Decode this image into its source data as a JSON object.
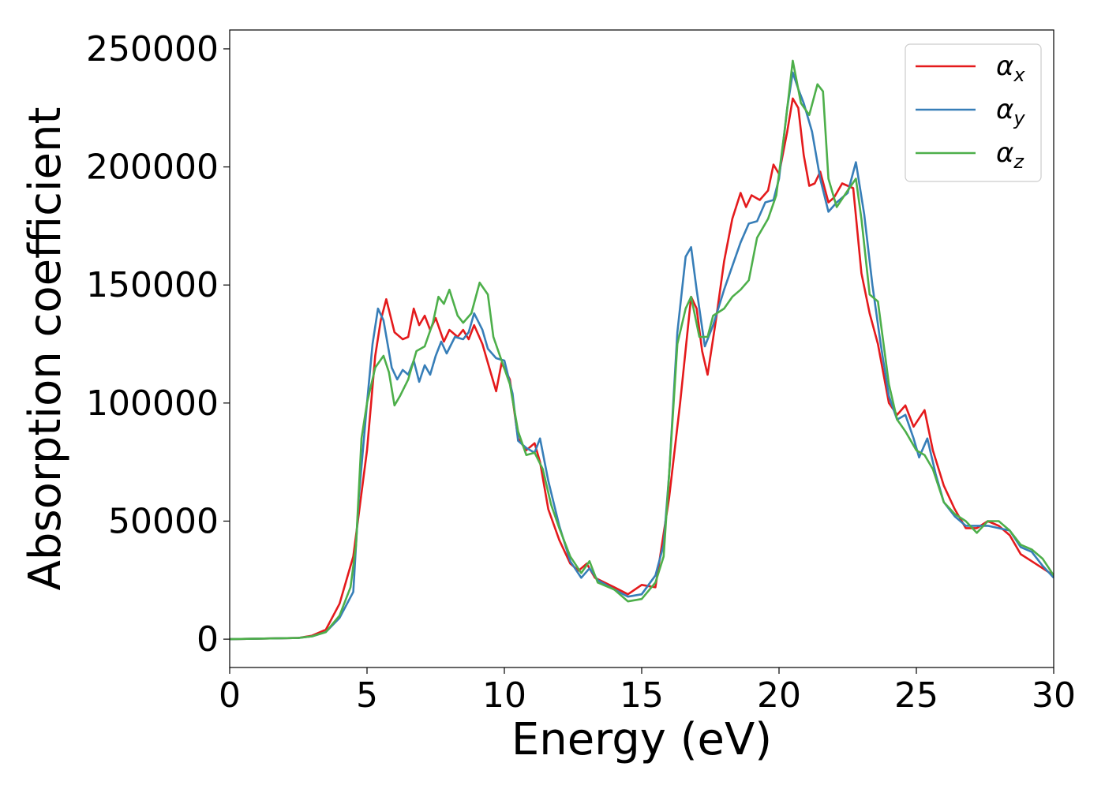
{
  "chart_data": {
    "type": "line",
    "title": "",
    "xlabel": "Energy (eV)",
    "ylabel": "Absorption coefficient",
    "xlim": [
      0,
      30
    ],
    "ylim": [
      -12000,
      258000
    ],
    "xticks": [
      0,
      5,
      10,
      15,
      20,
      25,
      30
    ],
    "xtick_labels": [
      "0",
      "5",
      "10",
      "15",
      "20",
      "25",
      "30"
    ],
    "yticks": [
      0,
      50000,
      100000,
      150000,
      200000,
      250000
    ],
    "ytick_labels": [
      "0",
      "50000",
      "100000",
      "150000",
      "200000",
      "250000"
    ],
    "grid": false,
    "legend_position": "top-right",
    "series": [
      {
        "name": "α_x",
        "symbol": "α",
        "subscript": "x",
        "color": "#e41a1c",
        "points": [
          [
            0,
            0
          ],
          [
            2.5,
            500
          ],
          [
            3,
            1500
          ],
          [
            3.5,
            4000
          ],
          [
            4,
            15000
          ],
          [
            4.5,
            35000
          ],
          [
            5,
            80000
          ],
          [
            5.3,
            120000
          ],
          [
            5.5,
            135000
          ],
          [
            5.7,
            144000
          ],
          [
            6,
            130000
          ],
          [
            6.3,
            127000
          ],
          [
            6.5,
            128000
          ],
          [
            6.7,
            140000
          ],
          [
            6.9,
            133000
          ],
          [
            7.1,
            137000
          ],
          [
            7.3,
            131000
          ],
          [
            7.5,
            136000
          ],
          [
            7.8,
            126000
          ],
          [
            8,
            131000
          ],
          [
            8.3,
            128000
          ],
          [
            8.5,
            131000
          ],
          [
            8.7,
            127000
          ],
          [
            8.9,
            133000
          ],
          [
            9.2,
            125000
          ],
          [
            9.5,
            113000
          ],
          [
            9.7,
            105000
          ],
          [
            9.9,
            117000
          ],
          [
            10.2,
            110000
          ],
          [
            10.5,
            85000
          ],
          [
            10.8,
            80000
          ],
          [
            11.1,
            83000
          ],
          [
            11.3,
            75000
          ],
          [
            11.6,
            55000
          ],
          [
            12,
            42000
          ],
          [
            12.4,
            32000
          ],
          [
            12.7,
            29000
          ],
          [
            13,
            32000
          ],
          [
            13.3,
            26000
          ],
          [
            14,
            22000
          ],
          [
            14.5,
            19000
          ],
          [
            15,
            23000
          ],
          [
            15.5,
            22000
          ],
          [
            16,
            60000
          ],
          [
            16.4,
            100000
          ],
          [
            16.8,
            145000
          ],
          [
            17,
            140000
          ],
          [
            17.2,
            122000
          ],
          [
            17.4,
            112000
          ],
          [
            17.7,
            135000
          ],
          [
            18,
            160000
          ],
          [
            18.3,
            178000
          ],
          [
            18.6,
            189000
          ],
          [
            18.8,
            183000
          ],
          [
            19,
            188000
          ],
          [
            19.3,
            186000
          ],
          [
            19.6,
            190000
          ],
          [
            19.8,
            201000
          ],
          [
            20,
            197000
          ],
          [
            20.3,
            215000
          ],
          [
            20.5,
            229000
          ],
          [
            20.7,
            225000
          ],
          [
            20.9,
            205000
          ],
          [
            21.1,
            192000
          ],
          [
            21.3,
            193000
          ],
          [
            21.5,
            198000
          ],
          [
            21.8,
            185000
          ],
          [
            22,
            187000
          ],
          [
            22.3,
            193000
          ],
          [
            22.7,
            191000
          ],
          [
            23,
            155000
          ],
          [
            23.3,
            138000
          ],
          [
            23.6,
            125000
          ],
          [
            24,
            100000
          ],
          [
            24.3,
            95000
          ],
          [
            24.6,
            99000
          ],
          [
            24.9,
            90000
          ],
          [
            25.3,
            97000
          ],
          [
            25.6,
            80000
          ],
          [
            26,
            65000
          ],
          [
            26.4,
            55000
          ],
          [
            26.8,
            47000
          ],
          [
            27.2,
            47000
          ],
          [
            27.6,
            50000
          ],
          [
            28,
            48000
          ],
          [
            28.4,
            44000
          ],
          [
            28.8,
            36000
          ],
          [
            29.2,
            33000
          ],
          [
            29.6,
            30000
          ],
          [
            30,
            27000
          ]
        ]
      },
      {
        "name": "α_y",
        "symbol": "α",
        "subscript": "y",
        "color": "#377eb8",
        "points": [
          [
            0,
            0
          ],
          [
            2.5,
            500
          ],
          [
            3,
            1200
          ],
          [
            3.5,
            3000
          ],
          [
            4,
            9000
          ],
          [
            4.5,
            20000
          ],
          [
            4.7,
            60000
          ],
          [
            5,
            100000
          ],
          [
            5.2,
            125000
          ],
          [
            5.4,
            140000
          ],
          [
            5.6,
            135000
          ],
          [
            5.9,
            115000
          ],
          [
            6.1,
            110000
          ],
          [
            6.3,
            114000
          ],
          [
            6.5,
            112000
          ],
          [
            6.7,
            118000
          ],
          [
            6.9,
            109000
          ],
          [
            7.1,
            116000
          ],
          [
            7.3,
            112000
          ],
          [
            7.5,
            120000
          ],
          [
            7.7,
            126000
          ],
          [
            7.9,
            121000
          ],
          [
            8.2,
            128000
          ],
          [
            8.5,
            127000
          ],
          [
            8.7,
            130000
          ],
          [
            8.9,
            138000
          ],
          [
            9.2,
            131000
          ],
          [
            9.4,
            123000
          ],
          [
            9.7,
            119000
          ],
          [
            10,
            118000
          ],
          [
            10.3,
            104000
          ],
          [
            10.5,
            84000
          ],
          [
            10.8,
            81000
          ],
          [
            11.1,
            79000
          ],
          [
            11.3,
            85000
          ],
          [
            11.6,
            67000
          ],
          [
            12,
            48000
          ],
          [
            12.4,
            33000
          ],
          [
            12.8,
            26000
          ],
          [
            13.1,
            30000
          ],
          [
            13.4,
            25000
          ],
          [
            14,
            21000
          ],
          [
            14.5,
            18000
          ],
          [
            15,
            19000
          ],
          [
            15.5,
            27000
          ],
          [
            15.8,
            40000
          ],
          [
            16,
            70000
          ],
          [
            16.3,
            130000
          ],
          [
            16.6,
            162000
          ],
          [
            16.8,
            166000
          ],
          [
            17,
            148000
          ],
          [
            17.3,
            124000
          ],
          [
            17.6,
            133000
          ],
          [
            18,
            148000
          ],
          [
            18.3,
            158000
          ],
          [
            18.6,
            168000
          ],
          [
            18.9,
            176000
          ],
          [
            19.2,
            177000
          ],
          [
            19.5,
            185000
          ],
          [
            19.8,
            186000
          ],
          [
            20,
            195000
          ],
          [
            20.3,
            225000
          ],
          [
            20.5,
            240000
          ],
          [
            20.7,
            233000
          ],
          [
            20.9,
            227000
          ],
          [
            21.2,
            215000
          ],
          [
            21.5,
            195000
          ],
          [
            21.8,
            181000
          ],
          [
            22.1,
            185000
          ],
          [
            22.5,
            189000
          ],
          [
            22.8,
            202000
          ],
          [
            23.1,
            180000
          ],
          [
            23.4,
            150000
          ],
          [
            23.7,
            125000
          ],
          [
            24,
            103000
          ],
          [
            24.3,
            93000
          ],
          [
            24.6,
            95000
          ],
          [
            24.9,
            85000
          ],
          [
            25.1,
            77000
          ],
          [
            25.4,
            85000
          ],
          [
            25.7,
            70000
          ],
          [
            26,
            58000
          ],
          [
            26.4,
            52000
          ],
          [
            26.8,
            48000
          ],
          [
            27.2,
            48000
          ],
          [
            27.6,
            48000
          ],
          [
            28,
            47000
          ],
          [
            28.4,
            46000
          ],
          [
            28.8,
            39000
          ],
          [
            29.2,
            37000
          ],
          [
            29.6,
            31000
          ],
          [
            30,
            26000
          ]
        ]
      },
      {
        "name": "α_z",
        "symbol": "α",
        "subscript": "z",
        "color": "#4daf4a",
        "points": [
          [
            0,
            0
          ],
          [
            2.5,
            500
          ],
          [
            3,
            1200
          ],
          [
            3.5,
            3000
          ],
          [
            4,
            10000
          ],
          [
            4.4,
            22000
          ],
          [
            4.6,
            40000
          ],
          [
            4.8,
            85000
          ],
          [
            5,
            100000
          ],
          [
            5.3,
            115000
          ],
          [
            5.6,
            120000
          ],
          [
            5.8,
            113000
          ],
          [
            6,
            99000
          ],
          [
            6.2,
            103000
          ],
          [
            6.5,
            110000
          ],
          [
            6.8,
            122000
          ],
          [
            7.1,
            124000
          ],
          [
            7.4,
            134000
          ],
          [
            7.6,
            145000
          ],
          [
            7.8,
            142000
          ],
          [
            8,
            148000
          ],
          [
            8.3,
            137000
          ],
          [
            8.5,
            134000
          ],
          [
            8.8,
            138000
          ],
          [
            9.1,
            151000
          ],
          [
            9.4,
            146000
          ],
          [
            9.6,
            128000
          ],
          [
            9.9,
            118000
          ],
          [
            10.2,
            108000
          ],
          [
            10.5,
            88000
          ],
          [
            10.8,
            78000
          ],
          [
            11.1,
            79000
          ],
          [
            11.4,
            72000
          ],
          [
            11.7,
            57000
          ],
          [
            12,
            47000
          ],
          [
            12.4,
            35000
          ],
          [
            12.8,
            28000
          ],
          [
            13.1,
            33000
          ],
          [
            13.4,
            24000
          ],
          [
            14,
            21000
          ],
          [
            14.5,
            16000
          ],
          [
            15,
            17000
          ],
          [
            15.5,
            24000
          ],
          [
            15.8,
            35000
          ],
          [
            16,
            70000
          ],
          [
            16.3,
            125000
          ],
          [
            16.6,
            140000
          ],
          [
            16.8,
            145000
          ],
          [
            17.1,
            128000
          ],
          [
            17.4,
            128000
          ],
          [
            17.6,
            137000
          ],
          [
            18,
            140000
          ],
          [
            18.3,
            145000
          ],
          [
            18.6,
            148000
          ],
          [
            18.9,
            152000
          ],
          [
            19.2,
            170000
          ],
          [
            19.6,
            178000
          ],
          [
            19.9,
            188000
          ],
          [
            20.2,
            215000
          ],
          [
            20.5,
            245000
          ],
          [
            20.8,
            227000
          ],
          [
            21.1,
            222000
          ],
          [
            21.4,
            235000
          ],
          [
            21.6,
            232000
          ],
          [
            21.8,
            195000
          ],
          [
            22.1,
            183000
          ],
          [
            22.5,
            190000
          ],
          [
            22.8,
            195000
          ],
          [
            23,
            178000
          ],
          [
            23.3,
            146000
          ],
          [
            23.6,
            143000
          ],
          [
            24,
            108000
          ],
          [
            24.3,
            93000
          ],
          [
            24.6,
            88000
          ],
          [
            25,
            80000
          ],
          [
            25.3,
            78000
          ],
          [
            25.6,
            72000
          ],
          [
            26,
            58000
          ],
          [
            26.4,
            53000
          ],
          [
            26.8,
            50000
          ],
          [
            27.2,
            45000
          ],
          [
            27.6,
            50000
          ],
          [
            28,
            50000
          ],
          [
            28.4,
            46000
          ],
          [
            28.8,
            40000
          ],
          [
            29.2,
            38000
          ],
          [
            29.6,
            34000
          ],
          [
            30,
            27000
          ]
        ]
      }
    ]
  }
}
